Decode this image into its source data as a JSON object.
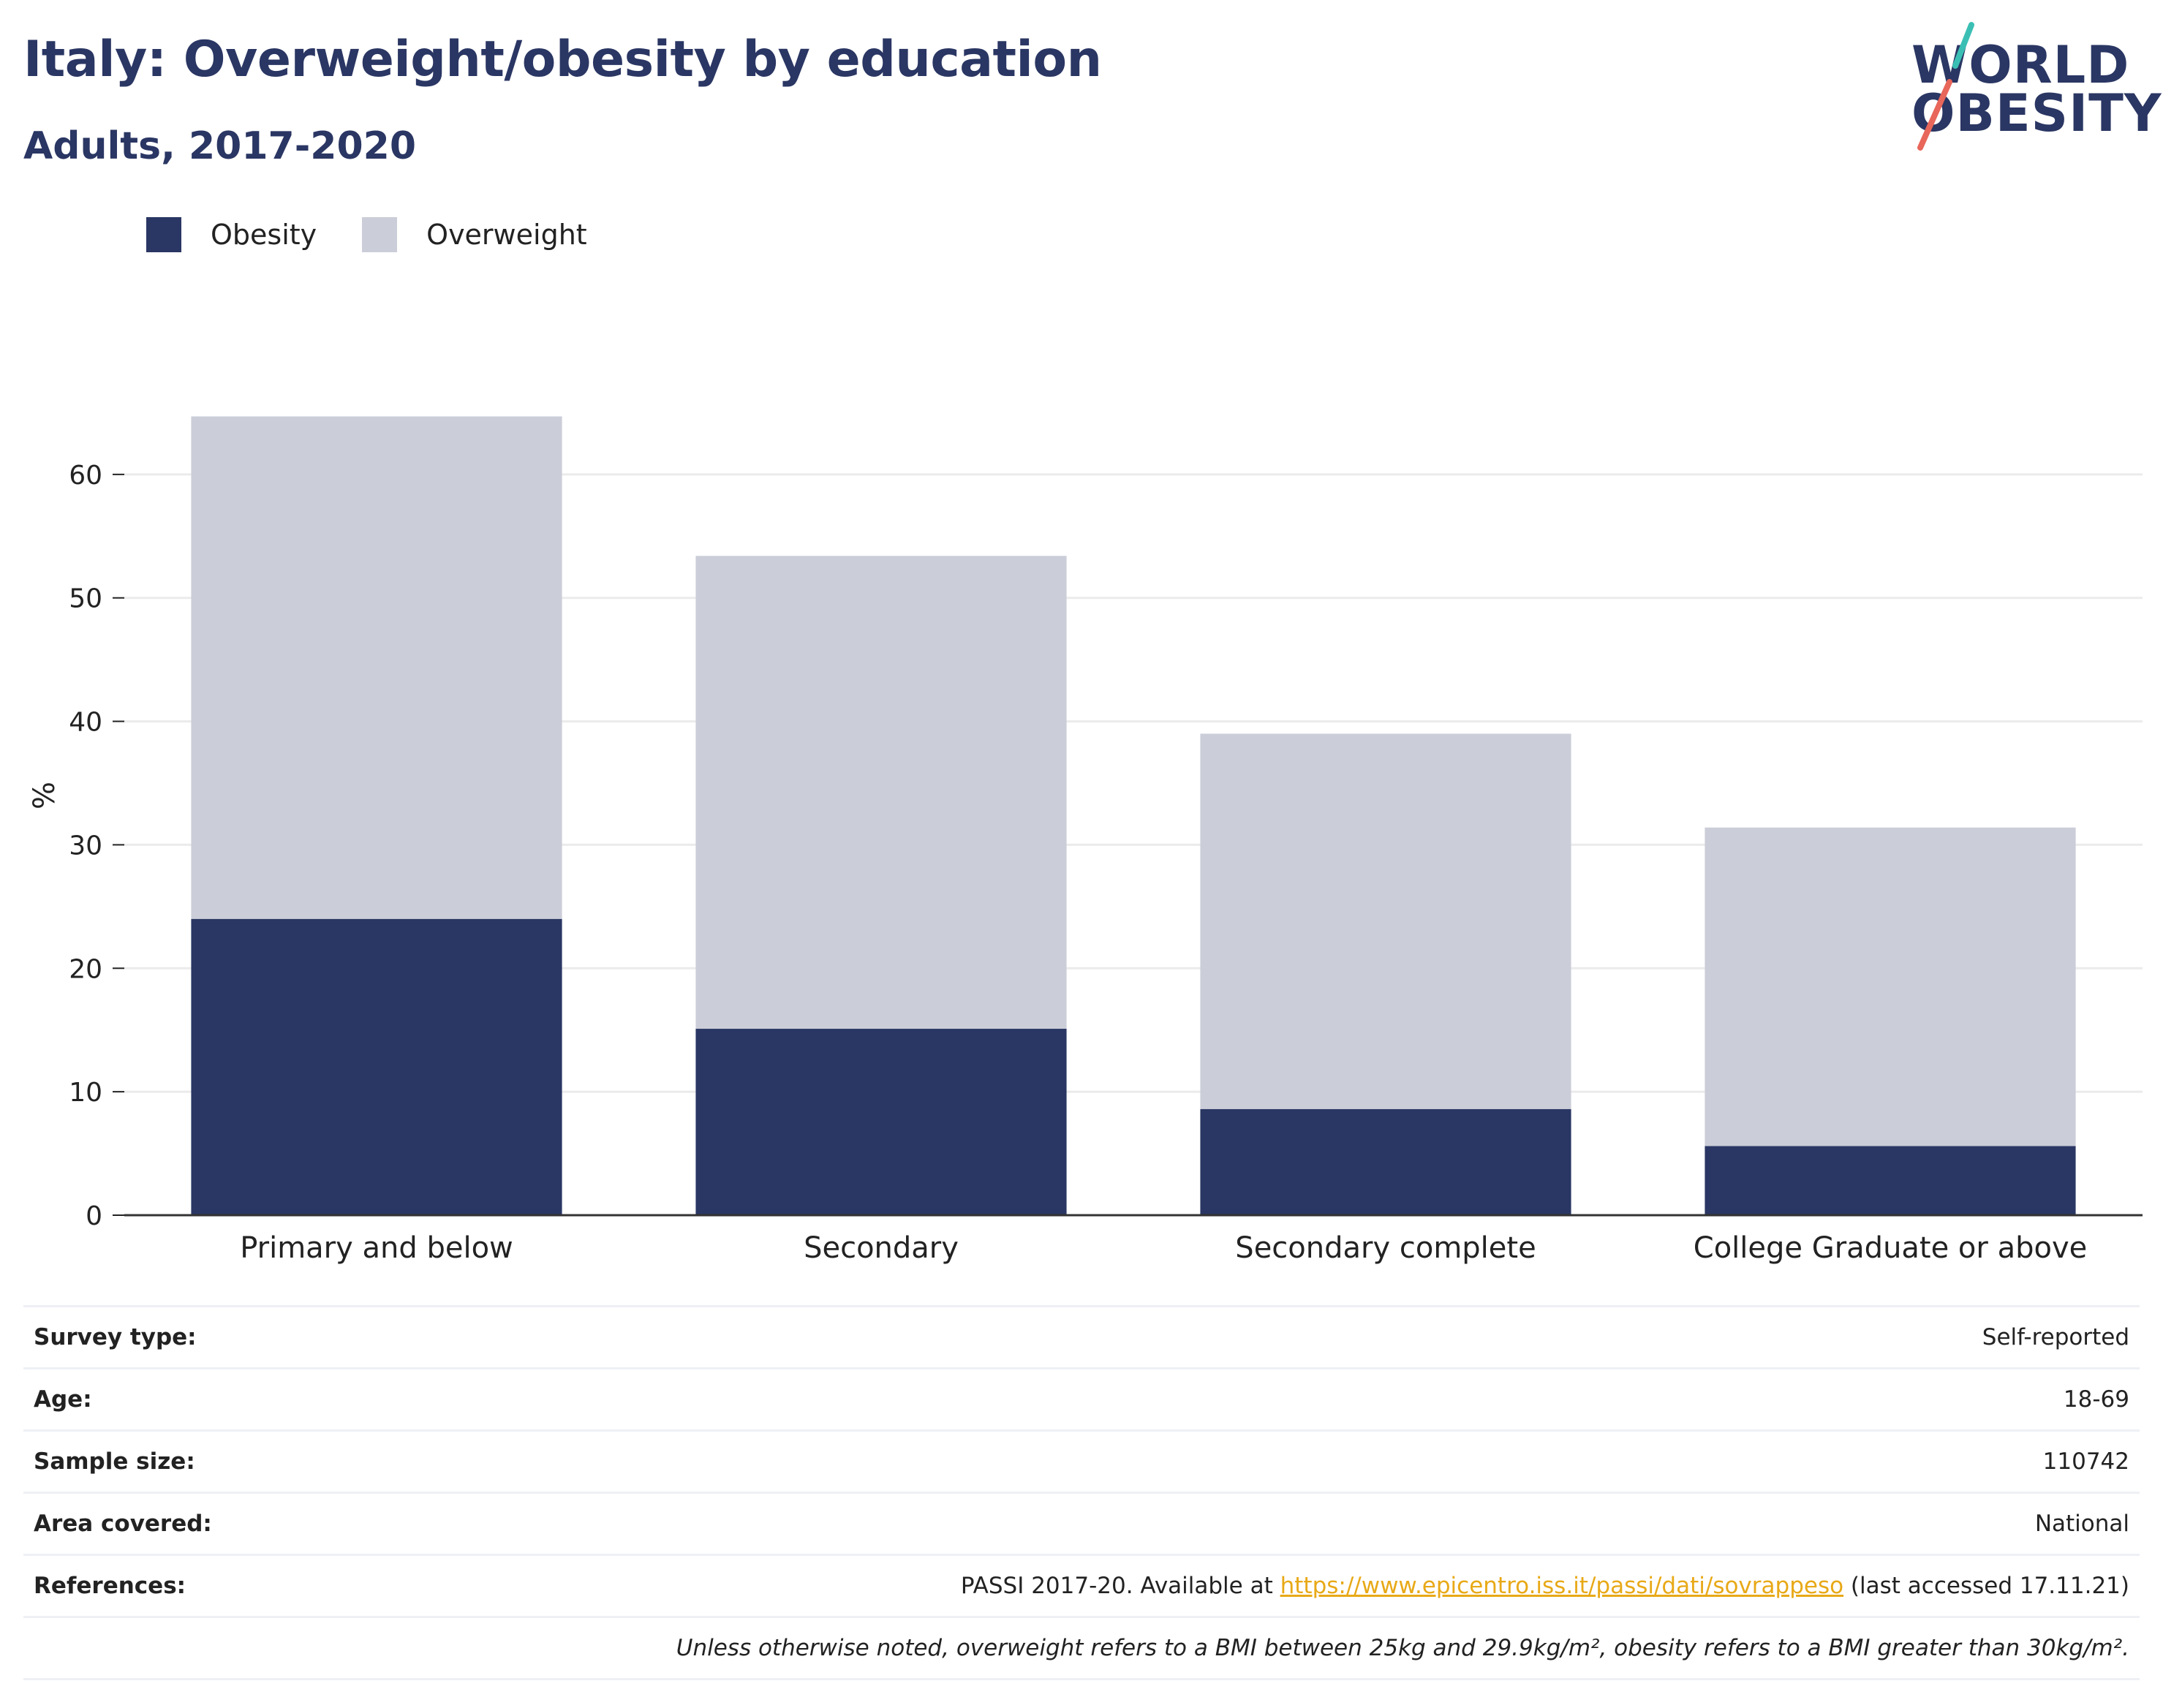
{
  "header": {
    "title": "Italy: Overweight/obesity by education",
    "subtitle": "Adults, 2017-2020"
  },
  "logo": {
    "line1": "WORLD",
    "line2": "OBESITY",
    "slash_colors": [
      "#3bbfb4",
      "#e8665a"
    ]
  },
  "colors": {
    "obesity": "#2a3663",
    "overweight": "#cbcdd8",
    "gridline": "#ebebeb",
    "link": "#e8a917"
  },
  "chart_data": {
    "type": "bar",
    "stacked": true,
    "categories": [
      "Primary and below",
      "Secondary",
      "Secondary complete",
      "College Graduate or above"
    ],
    "series": [
      {
        "name": "Obesity",
        "values": [
          24.0,
          15.1,
          8.6,
          5.6
        ]
      },
      {
        "name": "Overweight",
        "values": [
          40.7,
          38.3,
          30.4,
          25.8
        ]
      }
    ],
    "ylabel": "%",
    "xlabel": "",
    "ylim": [
      0,
      70
    ],
    "yticks": [
      0,
      10,
      20,
      30,
      40,
      50,
      60
    ],
    "grid": true,
    "legend_position": "top-left"
  },
  "info": {
    "survey_type": {
      "label": "Survey type:",
      "value": "Self-reported"
    },
    "age": {
      "label": "Age:",
      "value": "18-69"
    },
    "sample_size": {
      "label": "Sample size:",
      "value": "110742"
    },
    "area_covered": {
      "label": "Area covered:",
      "value": "National"
    },
    "references": {
      "label": "References:",
      "prefix": "PASSI 2017-20. Available at ",
      "link": "https://www.epicentro.iss.it/passi/dati/sovrappeso",
      "suffix": " (last accessed 17.11.21)"
    },
    "note": "Unless otherwise noted, overweight refers to a BMI between 25kg and 29.9kg/m², obesity refers to a BMI greater than 30kg/m²."
  }
}
